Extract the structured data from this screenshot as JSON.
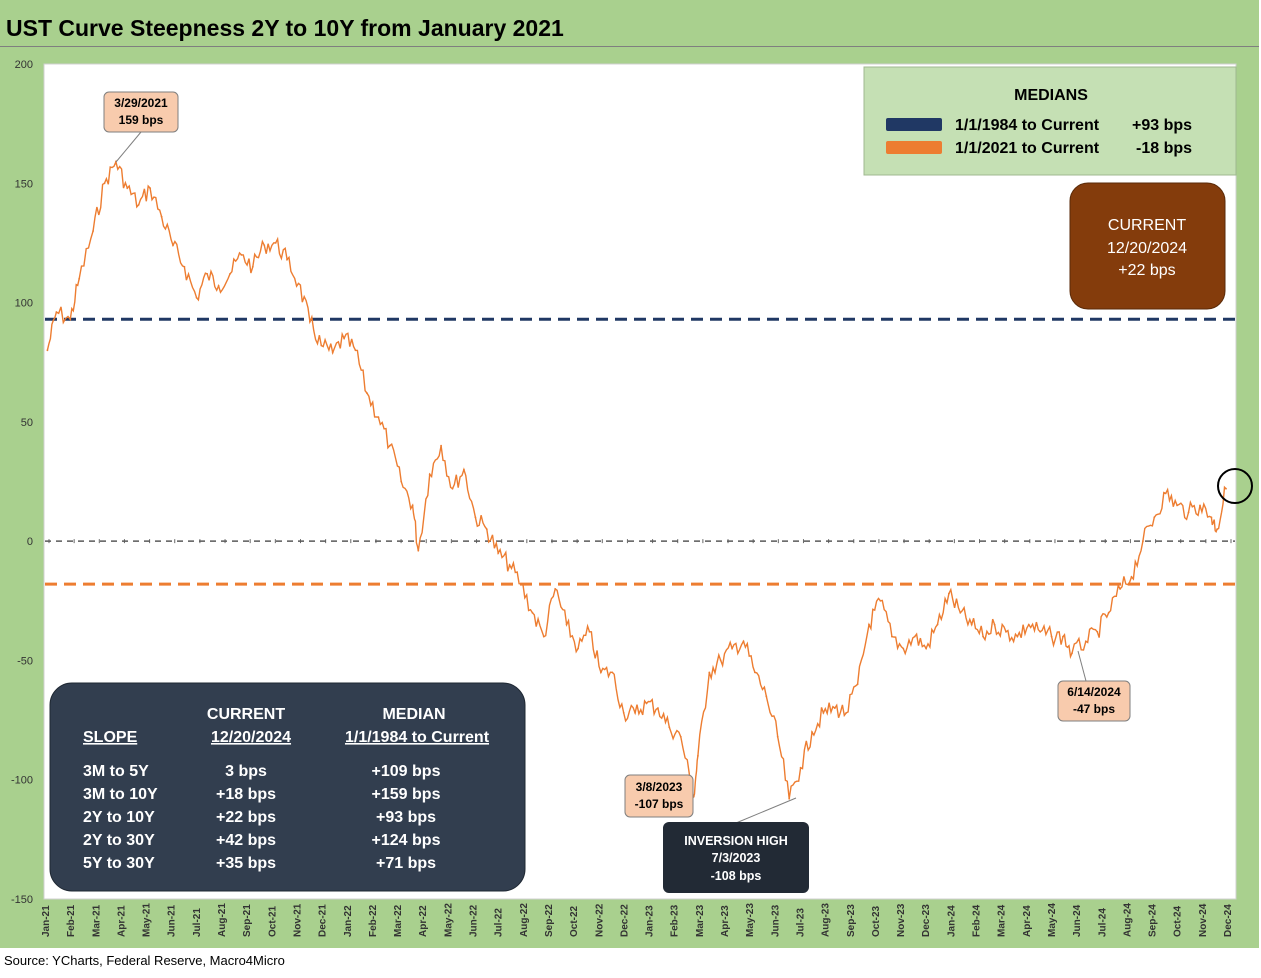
{
  "title": "UST Curve Steepness 2Y to 10Y from January 2021",
  "source": "Source: YCharts, Federal Reserve, Macro4Micro",
  "colors": {
    "frame": "#a9d08e",
    "series": "#ed7d31",
    "median_1984": "#203864",
    "median_2021": "#ed7d31",
    "current_box": "#843c0c",
    "table_box": "#323e4f",
    "callout_fill": "#f8cbad",
    "legend_box": "#c5e0b4"
  },
  "legend": {
    "title": "MEDIANS",
    "items": [
      {
        "label": "1/1/1984 to Current",
        "value": "+93 bps",
        "color": "#203864"
      },
      {
        "label": "1/1/2021 to Current",
        "value": "-18 bps",
        "color": "#ed7d31"
      }
    ]
  },
  "current_box": {
    "line1": "CURRENT",
    "line2": "12/20/2024",
    "line3": "+22 bps"
  },
  "callouts": [
    {
      "line1": "3/29/2021",
      "line2": "159 bps"
    },
    {
      "line1": "3/8/2023",
      "line2": "-107 bps"
    },
    {
      "line1": "6/14/2024",
      "line2": "-47 bps"
    }
  ],
  "inversion_box": {
    "line1": "INVERSION HIGH",
    "line2": "7/3/2023",
    "line3": "-108 bps"
  },
  "table": {
    "headers": {
      "current_top": "CURRENT",
      "median_top": "MEDIAN",
      "slope": "SLOPE",
      "current_date": "12/20/2024",
      "median_range": "1/1/1984 to Current"
    },
    "rows": [
      {
        "slope": "3M to 5Y",
        "current": "3 bps",
        "median": "+109 bps"
      },
      {
        "slope": "3M to 10Y",
        "current": "+18 bps",
        "median": "+159 bps"
      },
      {
        "slope": "2Y to 10Y",
        "current": "+22 bps",
        "median": "+93 bps"
      },
      {
        "slope": "2Y to 30Y",
        "current": "+42 bps",
        "median": "+124 bps"
      },
      {
        "slope": "5Y to 30Y",
        "current": "+35 bps",
        "median": "+71 bps"
      }
    ]
  },
  "chart_data": {
    "type": "line",
    "title": "UST Curve Steepness 2Y to 10Y from January 2021",
    "xlabel": "",
    "ylabel": "",
    "ylim": [
      -150,
      200
    ],
    "yticks": [
      200,
      150,
      100,
      50,
      0,
      -50,
      -100,
      -150
    ],
    "x_tick_labels": [
      "Jan-21",
      "Feb-21",
      "Mar-21",
      "Apr-21",
      "May-21",
      "Jun-21",
      "Jul-21",
      "Aug-21",
      "Sep-21",
      "Oct-21",
      "Nov-21",
      "Dec-21",
      "Jan-22",
      "Feb-22",
      "Mar-22",
      "Apr-22",
      "May-22",
      "Jun-22",
      "Jul-22",
      "Aug-22",
      "Sep-22",
      "Oct-22",
      "Nov-22",
      "Dec-22",
      "Jan-23",
      "Feb-23",
      "Mar-23",
      "Apr-23",
      "May-23",
      "Jun-23",
      "Jul-23",
      "Aug-23",
      "Sep-23",
      "Oct-23",
      "Nov-23",
      "Dec-23",
      "Jan-24",
      "Feb-24",
      "Mar-24",
      "Apr-24",
      "May-24",
      "Jun-24",
      "Jul-24",
      "Aug-24",
      "Sep-24",
      "Oct-24",
      "Nov-24",
      "Dec-24"
    ],
    "reference_lines": [
      {
        "name": "1/1/1984 to Current",
        "value": 93
      },
      {
        "name": "1/1/2021 to Current",
        "value": -18
      },
      {
        "name": "zero",
        "value": 0
      }
    ],
    "series": [
      {
        "name": "2Y to 10Y",
        "x": [
          "2021-01-04",
          "2021-01-15",
          "2021-02-01",
          "2021-02-12",
          "2021-03-01",
          "2021-03-15",
          "2021-03-29",
          "2021-04-12",
          "2021-04-26",
          "2021-05-10",
          "2021-05-24",
          "2021-06-07",
          "2021-06-21",
          "2021-07-06",
          "2021-07-19",
          "2021-08-02",
          "2021-08-16",
          "2021-08-30",
          "2021-09-13",
          "2021-09-27",
          "2021-10-11",
          "2021-10-25",
          "2021-11-08",
          "2021-11-22",
          "2021-12-06",
          "2021-12-20",
          "2022-01-03",
          "2022-01-17",
          "2022-01-31",
          "2022-02-14",
          "2022-02-28",
          "2022-03-14",
          "2022-03-28",
          "2022-04-04",
          "2022-04-18",
          "2022-05-02",
          "2022-05-16",
          "2022-05-30",
          "2022-06-13",
          "2022-06-27",
          "2022-07-11",
          "2022-07-25",
          "2022-08-08",
          "2022-08-22",
          "2022-09-05",
          "2022-09-19",
          "2022-10-03",
          "2022-10-17",
          "2022-10-31",
          "2022-11-14",
          "2022-11-28",
          "2022-12-12",
          "2022-12-26",
          "2023-01-09",
          "2023-01-23",
          "2023-02-06",
          "2023-02-20",
          "2023-03-08",
          "2023-03-13",
          "2023-03-27",
          "2023-04-10",
          "2023-04-24",
          "2023-05-08",
          "2023-05-22",
          "2023-06-05",
          "2023-06-19",
          "2023-07-03",
          "2023-07-17",
          "2023-07-31",
          "2023-08-14",
          "2023-08-28",
          "2023-09-11",
          "2023-09-25",
          "2023-10-09",
          "2023-10-23",
          "2023-11-06",
          "2023-11-20",
          "2023-12-04",
          "2023-12-18",
          "2024-01-01",
          "2024-01-15",
          "2024-01-29",
          "2024-02-12",
          "2024-02-26",
          "2024-03-11",
          "2024-03-25",
          "2024-04-08",
          "2024-04-22",
          "2024-05-06",
          "2024-05-20",
          "2024-06-03",
          "2024-06-14",
          "2024-07-01",
          "2024-07-15",
          "2024-07-29",
          "2024-08-12",
          "2024-08-26",
          "2024-09-09",
          "2024-09-23",
          "2024-10-07",
          "2024-10-21",
          "2024-11-04",
          "2024-11-18",
          "2024-12-02",
          "2024-12-09",
          "2024-12-20"
        ],
        "values": [
          80,
          96,
          93,
          110,
          130,
          150,
          159,
          148,
          141,
          148,
          136,
          124,
          115,
          102,
          112,
          107,
          112,
          120,
          115,
          124,
          125,
          118,
          108,
          92,
          82,
          79,
          85,
          80,
          62,
          52,
          40,
          25,
          15,
          -4,
          28,
          40,
          22,
          30,
          10,
          5,
          -5,
          -10,
          -18,
          -30,
          -40,
          -20,
          -35,
          -45,
          -38,
          -55,
          -55,
          -72,
          -72,
          -68,
          -70,
          -78,
          -82,
          -107,
          -90,
          -55,
          -50,
          -45,
          -42,
          -55,
          -65,
          -82,
          -108,
          -95,
          -80,
          -72,
          -70,
          -72,
          -60,
          -35,
          -25,
          -40,
          -45,
          -40,
          -45,
          -35,
          -22,
          -30,
          -35,
          -40,
          -35,
          -38,
          -40,
          -35,
          -38,
          -40,
          -40,
          -47,
          -42,
          -38,
          -30,
          -20,
          -15,
          0,
          10,
          20,
          15,
          12,
          15,
          10,
          5,
          22
        ]
      }
    ]
  }
}
